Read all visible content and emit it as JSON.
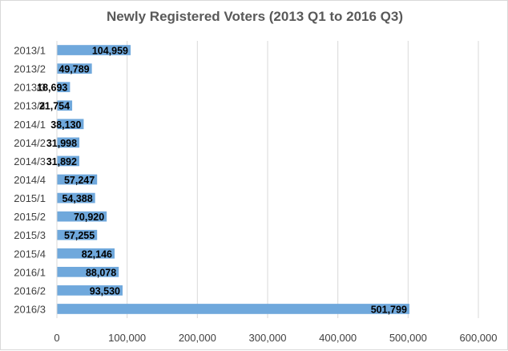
{
  "chart_data": {
    "type": "bar",
    "orientation": "horizontal",
    "title": "Newly Registered Voters (2013 Q1 to 2016 Q3)",
    "categories": [
      "2013/1",
      "2013/2",
      "2013/3",
      "2013/4",
      "2014/1",
      "2014/2",
      "2014/3",
      "2014/4",
      "2015/1",
      "2015/2",
      "2015/3",
      "2015/4",
      "2016/1",
      "2016/2",
      "2016/3"
    ],
    "values": [
      104959,
      49789,
      18693,
      21754,
      38130,
      31998,
      31892,
      57247,
      54388,
      70920,
      57255,
      82146,
      88078,
      93530,
      501799
    ],
    "data_labels": [
      "104,959",
      "49,789",
      "18,693",
      "21,754",
      "38,130",
      "31,998",
      "31,892",
      "57,247",
      "54,388",
      "70,920",
      "57,255",
      "82,146",
      "88,078",
      "93,530",
      "501,799"
    ],
    "xlim": [
      0,
      600000
    ],
    "x_ticks": [
      0,
      100000,
      200000,
      300000,
      400000,
      500000,
      600000
    ],
    "x_tick_labels": [
      "0",
      "100,000",
      "200,000",
      "300,000",
      "400,000",
      "500,000",
      "600,000"
    ],
    "grid": "vertical",
    "bar_color": "#6fa8dc",
    "grid_color": "#d9d9d9",
    "text_color": "#404040"
  }
}
